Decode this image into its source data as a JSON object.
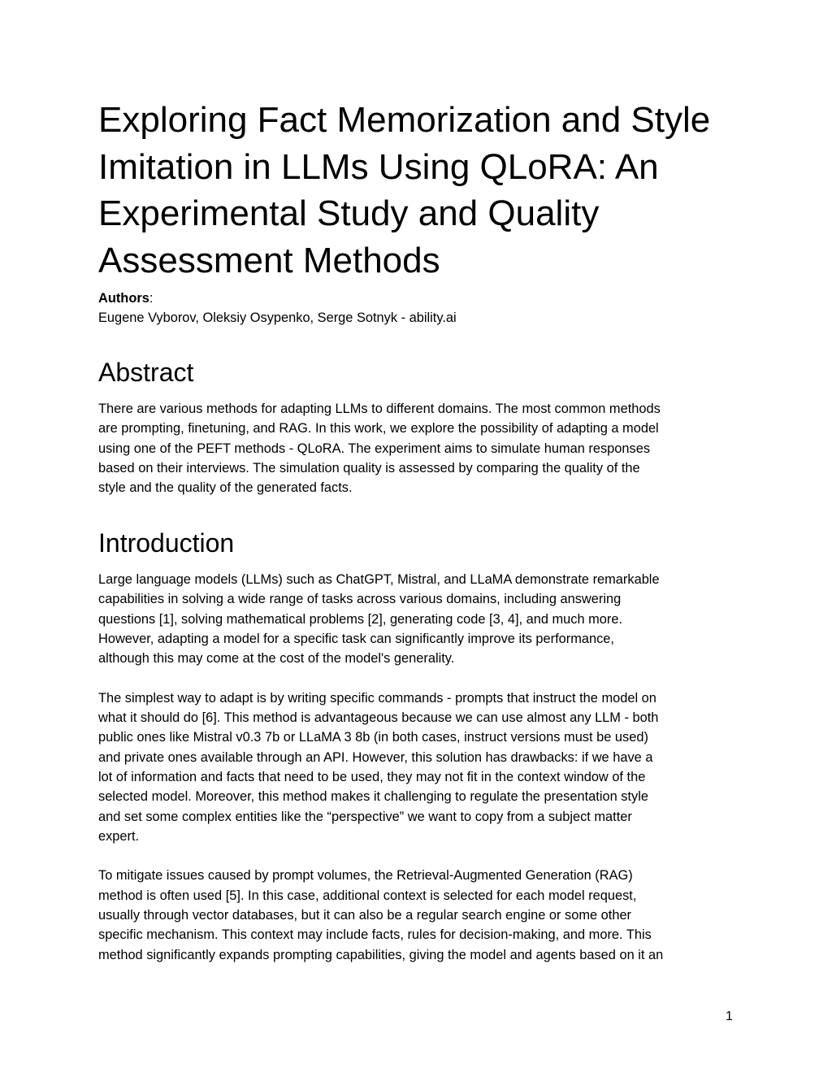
{
  "title_lines": [
    "Exploring Fact Memorization and Style",
    "Imitation in LLMs Using QLoRA: An",
    "Experimental Study and Quality",
    "Assessment Methods"
  ],
  "authors_label": "Authors",
  "authors_colon": ":",
  "authors": "Eugene Vyborov, Oleksiy Osypenko, Serge Sotnyk - ability.ai",
  "abstract": {
    "heading": "Abstract",
    "lines": [
      "There are various methods for adapting LLMs to different domains. The most common methods",
      "are prompting, finetuning, and RAG. In this work, we explore the possibility of adapting a model",
      "using one of the PEFT methods - QLoRA. The experiment aims to simulate human responses",
      "based on their interviews. The simulation quality is assessed by comparing the quality of the",
      "style and the quality of the generated facts."
    ]
  },
  "introduction": {
    "heading": "Introduction",
    "lines": [
      "Large language models (LLMs) such as ChatGPT, Mistral, and LLaMA demonstrate remarkable",
      "capabilities in solving a wide range of tasks across various domains, including answering",
      "questions [1], solving mathematical problems [2], generating code [3, 4], and much more.",
      "However, adapting a model for a specific task can significantly improve its performance,",
      "although this may come at the cost of the model's generality.",
      "",
      "The simplest way to adapt is by writing specific commands - prompts that instruct the model on",
      "what it should do [6]. This method is advantageous because we can use almost any LLM - both",
      "public ones like Mistral v0.3 7b or LLaMA 3 8b (in both cases, instruct versions must be used)",
      "and private ones available through an API. However, this solution has drawbacks: if we have a",
      "lot of information and facts that need to be used, they may not fit in the context window of the",
      "selected model. Moreover, this method makes it challenging to regulate the presentation style",
      "and set some complex entities like the “perspective” we want to copy from a subject matter",
      "expert.",
      "",
      "To mitigate issues caused by prompt volumes, the Retrieval-Augmented Generation (RAG)",
      "method is often used [5]. In this case, additional context is selected for each model request,",
      "usually through vector databases, but it can also be a regular search engine or some other",
      "specific mechanism. This context may include facts, rules for decision-making, and more. This",
      "method significantly expands prompting capabilities, giving the model and agents based on it an"
    ]
  },
  "page_number": "1"
}
